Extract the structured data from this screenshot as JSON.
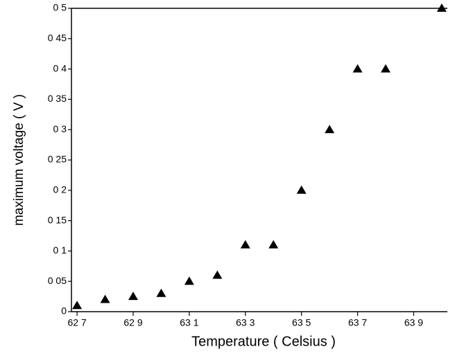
{
  "chart_data": {
    "type": "scatter",
    "xlabel": "Temperature ( Celsius )",
    "ylabel": "maximum voltage ( V )",
    "x": [
      62.7,
      62.8,
      62.9,
      63.0,
      63.1,
      63.2,
      63.3,
      63.4,
      63.5,
      63.6,
      63.7,
      63.8,
      64.0
    ],
    "values": [
      0.01,
      0.02,
      0.025,
      0.03,
      0.05,
      0.06,
      0.11,
      0.11,
      0.2,
      0.3,
      0.4,
      0.4,
      0.5
    ],
    "color": "#000000",
    "xlim": [
      62.68,
      64.02
    ],
    "xticks": [
      {
        "value": 62.7,
        "label": "62 7"
      },
      {
        "value": 62.9,
        "label": "62 9"
      },
      {
        "value": 63.1,
        "label": "63 1"
      },
      {
        "value": 63.3,
        "label": "63 3"
      },
      {
        "value": 63.5,
        "label": "63 5"
      },
      {
        "value": 63.7,
        "label": "63 7"
      },
      {
        "value": 63.9,
        "label": "63 9"
      }
    ],
    "ylim": [
      0,
      0.5
    ],
    "yticks": [
      0,
      {
        "value": 0.05,
        "label": "0 05"
      },
      {
        "value": 0.1,
        "label": "0 1"
      },
      {
        "value": 0.15,
        "label": "0 15"
      },
      {
        "value": 0.2,
        "label": "0 2"
      },
      {
        "value": 0.25,
        "label": "0 25"
      },
      {
        "value": 0.3,
        "label": "0 3"
      },
      {
        "value": 0.35,
        "label": "0 35"
      },
      {
        "value": 0.4,
        "label": "0 4"
      },
      {
        "value": 0.45,
        "label": "0 45"
      },
      {
        "value": 0.5,
        "label": "0 5"
      }
    ],
    "grid": false
  }
}
